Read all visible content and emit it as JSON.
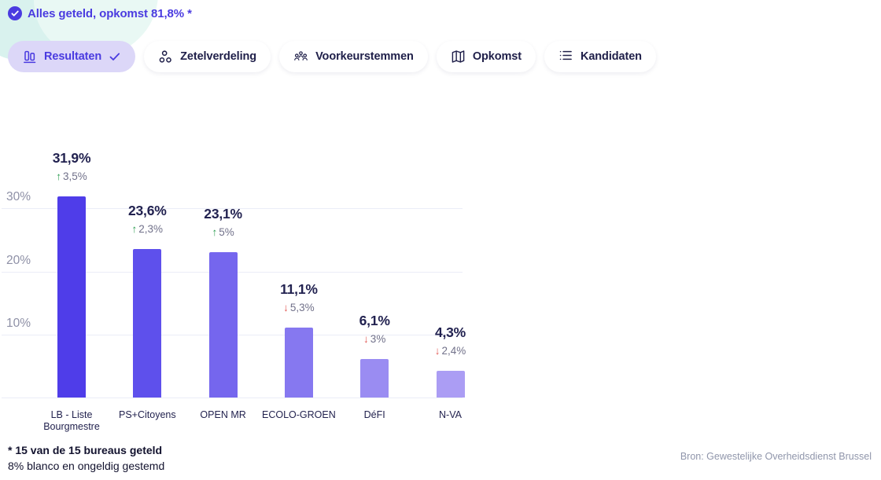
{
  "status": {
    "label": "Alles geteld, opkomst 81,8% *"
  },
  "tabs": [
    {
      "label": "Resultaten",
      "icon": "bar-chart-icon",
      "selected": true
    },
    {
      "label": "Zetelverdeling",
      "icon": "seat-distribution-icon",
      "selected": false
    },
    {
      "label": "Voorkeurstemmen",
      "icon": "people-group-icon",
      "selected": false
    },
    {
      "label": "Opkomst",
      "icon": "map-icon",
      "selected": false
    },
    {
      "label": "Kandidaten",
      "icon": "list-icon",
      "selected": false
    }
  ],
  "chart_data": {
    "type": "bar",
    "title": "",
    "categories": [
      "LB - Liste Bourgmestre",
      "PS+Citoyens",
      "OPEN MR",
      "ECOLO-GROEN",
      "DéFI",
      "N-VA"
    ],
    "values": [
      31.9,
      23.6,
      23.1,
      11.1,
      6.1,
      4.3
    ],
    "value_labels": [
      "31,9%",
      "23,6%",
      "23,1%",
      "11,1%",
      "6,1%",
      "4,3%"
    ],
    "changes": [
      {
        "direction": "up",
        "label": "3,5%"
      },
      {
        "direction": "up",
        "label": "2,3%"
      },
      {
        "direction": "up",
        "label": "5%"
      },
      {
        "direction": "down",
        "label": "5,3%"
      },
      {
        "direction": "down",
        "label": "3%"
      },
      {
        "direction": "down",
        "label": "2,4%"
      }
    ],
    "bar_colors": [
      "#4f3de9",
      "#5e50ec",
      "#7566ee",
      "#8678f0",
      "#9a8cf2",
      "#ab9df4"
    ],
    "yticks": [
      {
        "value": 30,
        "label": "30%"
      },
      {
        "value": 20,
        "label": "20%"
      },
      {
        "value": 10,
        "label": "10%"
      }
    ],
    "ylim": [
      0,
      33
    ],
    "grid": true,
    "legend": false,
    "xlabel": "",
    "ylabel": ""
  },
  "footnote": {
    "line1": "* 15 van de 15 bureaus geteld",
    "line2": "8% blanco en ongeldig gestemd"
  },
  "source": "Bron: Gewestelijke Overheidsdienst Brussel",
  "colors": {
    "accent": "#4a3be0",
    "selected_tab_bg": "#dcd7f8",
    "tab_text": "#20204a",
    "up_arrow": "#2e9e52",
    "down_arrow": "#e15551",
    "grid": "#ebedf7",
    "axis_label": "#8e90a6",
    "change_text": "#71718a",
    "source_text": "#9096ab"
  }
}
